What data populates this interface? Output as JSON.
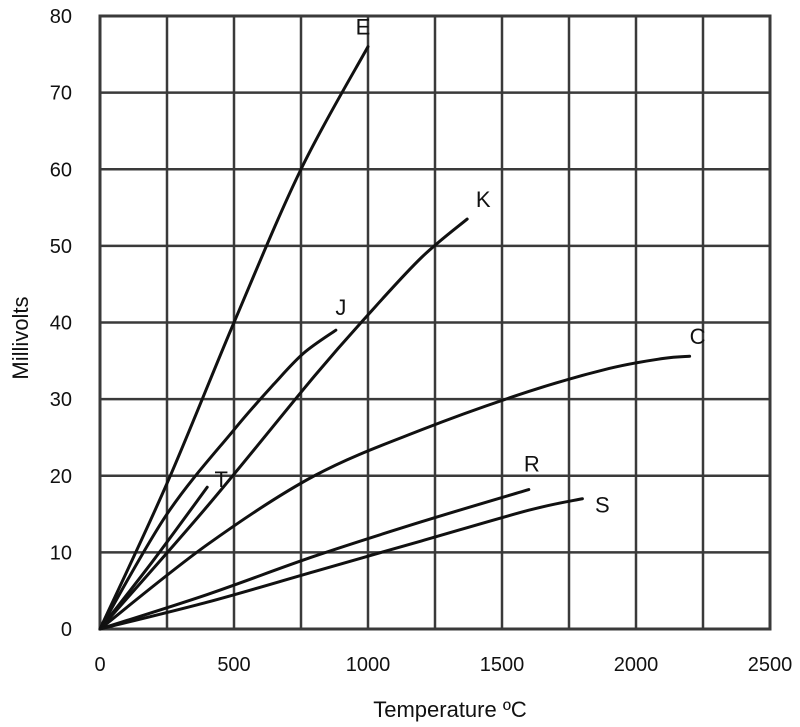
{
  "chart_data": {
    "type": "line",
    "xlabel": "Temperature ºC",
    "ylabel": "Millivolts",
    "xlim": [
      0,
      2500
    ],
    "ylim": [
      0,
      80
    ],
    "grid": true,
    "x_ticks": [
      0,
      500,
      1000,
      1500,
      2000,
      2500
    ],
    "y_ticks": [
      0,
      10,
      20,
      30,
      40,
      50,
      60,
      70,
      80
    ],
    "series": [
      {
        "name": "E",
        "x": [
          0,
          250,
          500,
          750,
          1000
        ],
        "y": [
          0,
          19,
          40,
          60,
          76
        ]
      },
      {
        "name": "J",
        "x": [
          0,
          250,
          500,
          650,
          760,
          880
        ],
        "y": [
          0,
          15,
          26,
          32,
          36,
          39
        ]
      },
      {
        "name": "T",
        "x": [
          0,
          200,
          400
        ],
        "y": [
          0,
          9,
          18.5
        ]
      },
      {
        "name": "K",
        "x": [
          0,
          400,
          800,
          1000,
          1200,
          1370
        ],
        "y": [
          0,
          16,
          33,
          41,
          48.5,
          53.5
        ]
      },
      {
        "name": "C",
        "x": [
          0,
          400,
          800,
          1200,
          1600,
          1900,
          2100,
          2200
        ],
        "y": [
          0,
          11,
          20,
          26,
          31,
          34,
          35.3,
          35.6
        ]
      },
      {
        "name": "R",
        "x": [
          0,
          400,
          800,
          1200,
          1600
        ],
        "y": [
          0,
          4.5,
          9.5,
          14,
          18.2
        ]
      },
      {
        "name": "S",
        "x": [
          0,
          400,
          800,
          1200,
          1600,
          1800
        ],
        "y": [
          0,
          3.5,
          7.5,
          11.5,
          15.5,
          17
        ]
      }
    ]
  }
}
